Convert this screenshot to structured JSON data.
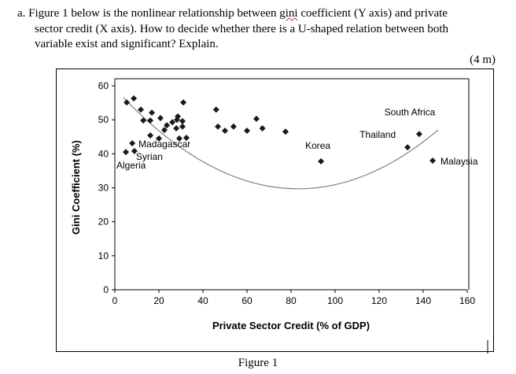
{
  "question": {
    "prefix": "a.",
    "line1_a": "Figure 1 below is the nonlinear relationship between ",
    "gini_word": "gini",
    "line1_b": " coefficient (Y axis) and private",
    "line2": "sector credit (X axis). How to decide whether there is a U-shaped relation between both",
    "line3": "variable exist and significant? Explain.",
    "marks": "(4 m)"
  },
  "caption": "Figure 1",
  "chart_data": {
    "type": "scatter",
    "title": "",
    "xlabel": "Private Sector Credit (% of GDP)",
    "ylabel": "Gini Coefficient (%)",
    "xlim": [
      0,
      160
    ],
    "ylim": [
      0,
      60
    ],
    "xticks": [
      "0",
      "20",
      "40",
      "60",
      "80",
      "100",
      "120",
      "140",
      "160"
    ],
    "yticks": [
      "0",
      "10",
      "20",
      "30",
      "40",
      "50",
      "60"
    ],
    "grid": false,
    "points": [
      {
        "x": 5.4,
        "y": 55.1
      },
      {
        "x": 8.6,
        "y": 56.3
      },
      {
        "x": 11.8,
        "y": 53
      },
      {
        "x": 12.9,
        "y": 49.8
      },
      {
        "x": 16.8,
        "y": 52.1
      },
      {
        "x": 16.1,
        "y": 49.8
      },
      {
        "x": 20.7,
        "y": 50.5
      },
      {
        "x": 16.1,
        "y": 45.4
      },
      {
        "x": 20,
        "y": 44.5
      },
      {
        "x": 22.5,
        "y": 47
      },
      {
        "x": 23.6,
        "y": 48.4
      },
      {
        "x": 26.1,
        "y": 49.3
      },
      {
        "x": 28.2,
        "y": 50
      },
      {
        "x": 28.6,
        "y": 51
      },
      {
        "x": 30.7,
        "y": 49.6
      },
      {
        "x": 27.9,
        "y": 47.5
      },
      {
        "x": 30.7,
        "y": 48
      },
      {
        "x": 29.3,
        "y": 44.5
      },
      {
        "x": 32.5,
        "y": 44.7
      },
      {
        "x": 31.1,
        "y": 55.1
      },
      {
        "x": 7.9,
        "y": 43.1,
        "label": "Madagascar"
      },
      {
        "x": 5,
        "y": 40.5,
        "label": "Algeria"
      },
      {
        "x": 8.9,
        "y": 40.8,
        "label": "Syrian"
      },
      {
        "x": 46,
        "y": 53
      },
      {
        "x": 46.8,
        "y": 48
      },
      {
        "x": 50,
        "y": 46.8
      },
      {
        "x": 53.9,
        "y": 48
      },
      {
        "x": 60,
        "y": 46.8
      },
      {
        "x": 64.3,
        "y": 50.3
      },
      {
        "x": 67,
        "y": 47.5
      },
      {
        "x": 77.5,
        "y": 46.5
      },
      {
        "x": 93.6,
        "y": 37.8,
        "label": "Korea"
      },
      {
        "x": 132.9,
        "y": 41.9,
        "label": "Thailand"
      },
      {
        "x": 138.2,
        "y": 45.8,
        "label": "South Africa"
      },
      {
        "x": 144.3,
        "y": 38,
        "label": "Malaysia"
      }
    ],
    "trendline": {
      "type": "quadratic",
      "a": 0.004274,
      "b": -0.711,
      "c": 59.28,
      "x_range": [
        4,
        146.8
      ],
      "color": "#808080"
    },
    "marker_color": "#1a1a1a"
  }
}
